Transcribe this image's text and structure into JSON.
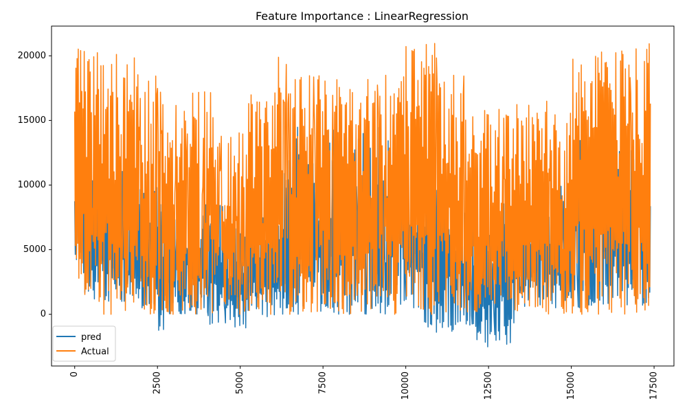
{
  "chart_data": {
    "type": "line",
    "title": "Feature Importance : LinearRegression",
    "xlabel": "",
    "ylabel": "",
    "xlim": [
      -700,
      18100
    ],
    "ylim": [
      -4000,
      22300
    ],
    "x_ticks": [
      0,
      2500,
      5000,
      7500,
      10000,
      12500,
      15000,
      17500
    ],
    "y_ticks": [
      0,
      5000,
      10000,
      15000,
      20000
    ],
    "x_tick_rotation": 90,
    "grid": false,
    "legend": "lower-left",
    "n_points": 17379,
    "series": [
      {
        "name": "pred",
        "color": "#1f77b4",
        "segments": [
          {
            "x_start": 0,
            "x_end": 300,
            "low": 2500,
            "high": 14000
          },
          {
            "x_start": 300,
            "x_end": 1500,
            "low": 1000,
            "high": 11500
          },
          {
            "x_start": 1500,
            "x_end": 2500,
            "low": 500,
            "high": 11000
          },
          {
            "x_start": 2500,
            "x_end": 2700,
            "low": -1300,
            "high": 9000
          },
          {
            "x_start": 2700,
            "x_end": 4000,
            "low": 0,
            "high": 8500
          },
          {
            "x_start": 4000,
            "x_end": 4500,
            "low": -800,
            "high": 8500
          },
          {
            "x_start": 4500,
            "x_end": 5200,
            "low": -1200,
            "high": 6800
          },
          {
            "x_start": 5200,
            "x_end": 6200,
            "low": -200,
            "high": 8000
          },
          {
            "x_start": 6200,
            "x_end": 9500,
            "low": 0,
            "high": 14500
          },
          {
            "x_start": 9500,
            "x_end": 10500,
            "low": 500,
            "high": 12500
          },
          {
            "x_start": 10500,
            "x_end": 11500,
            "low": -1400,
            "high": 11500
          },
          {
            "x_start": 11500,
            "x_end": 12100,
            "low": -1000,
            "high": 9000
          },
          {
            "x_start": 12100,
            "x_end": 12600,
            "low": -2700,
            "high": 8000
          },
          {
            "x_start": 12600,
            "x_end": 13300,
            "low": -2400,
            "high": 8600
          },
          {
            "x_start": 13300,
            "x_end": 14600,
            "low": 500,
            "high": 8600
          },
          {
            "x_start": 14600,
            "x_end": 15200,
            "low": 1000,
            "high": 10500
          },
          {
            "x_start": 15200,
            "x_end": 17400,
            "low": 500,
            "high": 13500
          }
        ]
      },
      {
        "name": "Actual",
        "color": "#ff7f0e",
        "segments": [
          {
            "x_start": 0,
            "x_end": 300,
            "low": 2500,
            "high": 20600
          },
          {
            "x_start": 300,
            "x_end": 1200,
            "low": 0,
            "high": 20400
          },
          {
            "x_start": 1200,
            "x_end": 2000,
            "low": 0,
            "high": 20500
          },
          {
            "x_start": 2000,
            "x_end": 2700,
            "low": 0,
            "high": 18500
          },
          {
            "x_start": 2700,
            "x_end": 3500,
            "low": 0,
            "high": 16300
          },
          {
            "x_start": 3500,
            "x_end": 4200,
            "low": 0,
            "high": 17800
          },
          {
            "x_start": 4200,
            "x_end": 5200,
            "low": 0,
            "high": 14500
          },
          {
            "x_start": 5200,
            "x_end": 6000,
            "low": 0,
            "high": 17000
          },
          {
            "x_start": 6000,
            "x_end": 6500,
            "low": 0,
            "high": 20300
          },
          {
            "x_start": 6500,
            "x_end": 8500,
            "low": 0,
            "high": 18500
          },
          {
            "x_start": 8500,
            "x_end": 10000,
            "low": 0,
            "high": 18600
          },
          {
            "x_start": 10000,
            "x_end": 11000,
            "low": 0,
            "high": 21000
          },
          {
            "x_start": 11000,
            "x_end": 11800,
            "low": 0,
            "high": 18500
          },
          {
            "x_start": 11800,
            "x_end": 12700,
            "low": 0,
            "high": 15800
          },
          {
            "x_start": 12700,
            "x_end": 14500,
            "low": 0,
            "high": 16500
          },
          {
            "x_start": 14500,
            "x_end": 15000,
            "low": 0,
            "high": 16000
          },
          {
            "x_start": 15000,
            "x_end": 15500,
            "low": 0,
            "high": 20800
          },
          {
            "x_start": 15500,
            "x_end": 17400,
            "low": 0,
            "high": 21000
          }
        ]
      }
    ]
  }
}
